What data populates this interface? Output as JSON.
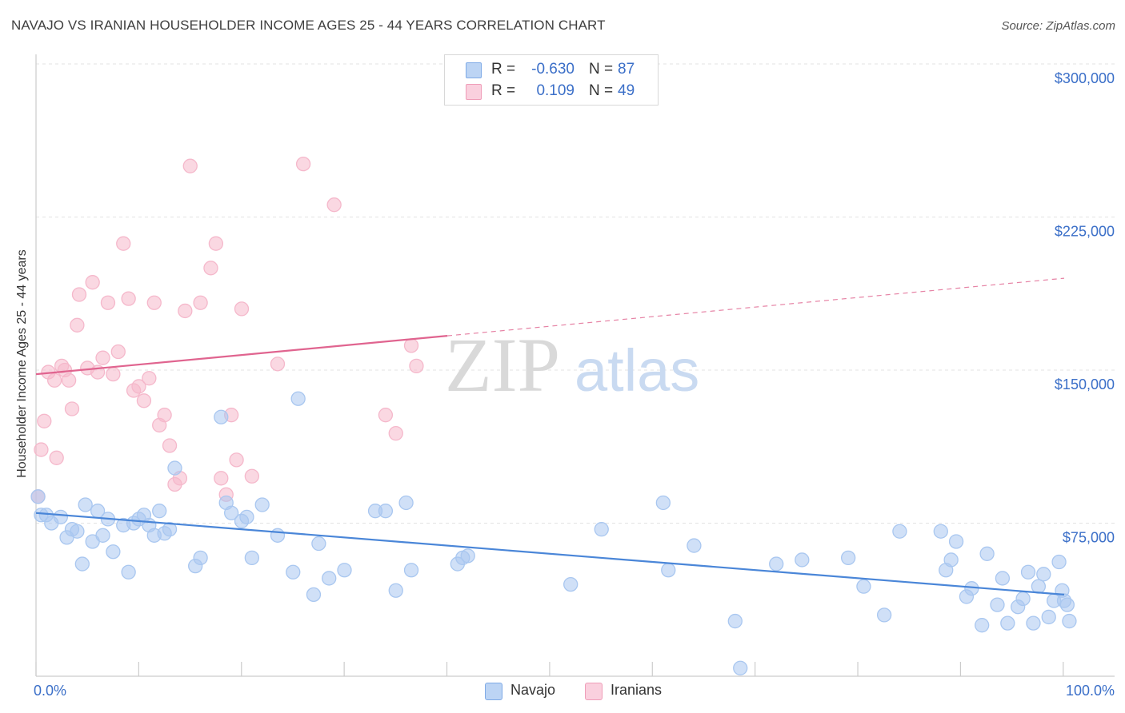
{
  "header": {
    "title": "NAVAJO VS IRANIAN HOUSEHOLDER INCOME AGES 25 - 44 YEARS CORRELATION CHART",
    "source": "Source: ZipAtlas.com"
  },
  "watermark": {
    "zip": "ZIP",
    "atlas": "atlas"
  },
  "legend": {
    "rows": [
      {
        "swatch_color": "#a9c7f0",
        "r_label": "R =",
        "r_value": "-0.630",
        "n_label": "N =",
        "n_value": "87"
      },
      {
        "swatch_color": "#f5b8cb",
        "r_label": "R =",
        "r_value": "0.109",
        "n_label": "N =",
        "n_value": "49"
      }
    ]
  },
  "bottom_legend": {
    "items": [
      {
        "label": "Navajo",
        "color": "#a9c7f0"
      },
      {
        "label": "Iranians",
        "color": "#f5b8cb"
      }
    ]
  },
  "chart_data": {
    "type": "scatter",
    "ylabel": "Householder Income Ages 25 - 44 years",
    "xlim": [
      0,
      100
    ],
    "ylim": [
      0,
      300000
    ],
    "x_tick_labels": {
      "min": "0.0%",
      "max": "100.0%"
    },
    "y_ticks": [
      {
        "value": 75000,
        "label": "$75,000"
      },
      {
        "value": 150000,
        "label": "$150,000"
      },
      {
        "value": 225000,
        "label": "$225,000"
      },
      {
        "value": 300000,
        "label": "$300,000"
      }
    ],
    "grid": true,
    "series": [
      {
        "name": "Navajo",
        "color": "#4a86d8",
        "fill": "#a9c7f0",
        "trend": {
          "x0": 0,
          "y0": 80000,
          "x1": 100,
          "y1": 40000,
          "solid_until": 100
        },
        "points": [
          [
            0.2,
            88000
          ],
          [
            0.5,
            79000
          ],
          [
            1.0,
            79000
          ],
          [
            1.5,
            75000
          ],
          [
            2.4,
            78000
          ],
          [
            3.0,
            68000
          ],
          [
            3.5,
            72000
          ],
          [
            4.0,
            71000
          ],
          [
            4.5,
            55000
          ],
          [
            4.8,
            84000
          ],
          [
            5.5,
            66000
          ],
          [
            6.0,
            81000
          ],
          [
            6.5,
            69000
          ],
          [
            7.0,
            77000
          ],
          [
            7.5,
            61000
          ],
          [
            8.5,
            74000
          ],
          [
            9.0,
            51000
          ],
          [
            9.5,
            75000
          ],
          [
            10.0,
            77000
          ],
          [
            10.5,
            79000
          ],
          [
            11.0,
            74000
          ],
          [
            11.5,
            69000
          ],
          [
            12.0,
            81000
          ],
          [
            12.5,
            70000
          ],
          [
            13.0,
            72000
          ],
          [
            13.5,
            102000
          ],
          [
            15.5,
            54000
          ],
          [
            16.0,
            58000
          ],
          [
            18.0,
            127000
          ],
          [
            18.5,
            85000
          ],
          [
            19.0,
            80000
          ],
          [
            20.0,
            76000
          ],
          [
            20.5,
            78000
          ],
          [
            21.0,
            58000
          ],
          [
            22.0,
            84000
          ],
          [
            23.5,
            69000
          ],
          [
            25.0,
            51000
          ],
          [
            25.5,
            136000
          ],
          [
            27.0,
            40000
          ],
          [
            27.5,
            65000
          ],
          [
            28.5,
            48000
          ],
          [
            30.0,
            52000
          ],
          [
            33.0,
            81000
          ],
          [
            34.0,
            81000
          ],
          [
            35.0,
            42000
          ],
          [
            36.0,
            85000
          ],
          [
            36.5,
            52000
          ],
          [
            41.0,
            55000
          ],
          [
            41.5,
            58000
          ],
          [
            42.0,
            59000
          ],
          [
            52.0,
            45000
          ],
          [
            55.0,
            72000
          ],
          [
            61.0,
            85000
          ],
          [
            61.5,
            52000
          ],
          [
            64.0,
            64000
          ],
          [
            68.0,
            27000
          ],
          [
            68.5,
            4000
          ],
          [
            72.0,
            55000
          ],
          [
            74.5,
            57000
          ],
          [
            79.0,
            58000
          ],
          [
            80.5,
            44000
          ],
          [
            82.5,
            30000
          ],
          [
            84.0,
            71000
          ],
          [
            88.0,
            71000
          ],
          [
            88.5,
            52000
          ],
          [
            89.0,
            57000
          ],
          [
            89.5,
            66000
          ],
          [
            90.5,
            39000
          ],
          [
            91.0,
            43000
          ],
          [
            92.0,
            25000
          ],
          [
            92.5,
            60000
          ],
          [
            93.5,
            35000
          ],
          [
            94.0,
            48000
          ],
          [
            94.5,
            26000
          ],
          [
            95.5,
            34000
          ],
          [
            96.0,
            38000
          ],
          [
            96.5,
            51000
          ],
          [
            97.0,
            26000
          ],
          [
            97.5,
            44000
          ],
          [
            98.0,
            50000
          ],
          [
            98.5,
            29000
          ],
          [
            99.0,
            37000
          ],
          [
            99.5,
            56000
          ],
          [
            99.8,
            42000
          ],
          [
            100.0,
            37000
          ],
          [
            100.3,
            35000
          ],
          [
            100.5,
            27000
          ]
        ]
      },
      {
        "name": "Iranians",
        "color": "#e0648f",
        "fill": "#f5b8cb",
        "trend": {
          "x0": 0,
          "y0": 148000,
          "x1": 100,
          "y1": 195000,
          "solid_until": 40
        },
        "points": [
          [
            0.2,
            88000
          ],
          [
            0.5,
            111000
          ],
          [
            0.8,
            125000
          ],
          [
            1.2,
            149000
          ],
          [
            1.8,
            145000
          ],
          [
            2.0,
            107000
          ],
          [
            2.5,
            152000
          ],
          [
            2.8,
            150000
          ],
          [
            3.2,
            145000
          ],
          [
            3.5,
            131000
          ],
          [
            4.0,
            172000
          ],
          [
            4.2,
            187000
          ],
          [
            5.0,
            151000
          ],
          [
            5.5,
            193000
          ],
          [
            6.0,
            149000
          ],
          [
            6.5,
            156000
          ],
          [
            7.0,
            183000
          ],
          [
            7.5,
            148000
          ],
          [
            8.0,
            159000
          ],
          [
            8.5,
            212000
          ],
          [
            9.0,
            185000
          ],
          [
            9.5,
            140000
          ],
          [
            10.0,
            142000
          ],
          [
            10.5,
            135000
          ],
          [
            11.0,
            146000
          ],
          [
            11.5,
            183000
          ],
          [
            12.0,
            123000
          ],
          [
            12.5,
            128000
          ],
          [
            13.0,
            113000
          ],
          [
            13.5,
            94000
          ],
          [
            14.0,
            97000
          ],
          [
            14.5,
            179000
          ],
          [
            15.0,
            250000
          ],
          [
            16.0,
            183000
          ],
          [
            17.0,
            200000
          ],
          [
            17.5,
            212000
          ],
          [
            18.0,
            97000
          ],
          [
            18.5,
            89000
          ],
          [
            19.0,
            128000
          ],
          [
            19.5,
            106000
          ],
          [
            20.0,
            180000
          ],
          [
            21.0,
            98000
          ],
          [
            23.5,
            153000
          ],
          [
            26.0,
            251000
          ],
          [
            29.0,
            231000
          ],
          [
            34.0,
            128000
          ],
          [
            35.0,
            119000
          ],
          [
            36.5,
            162000
          ],
          [
            37.0,
            152000
          ]
        ]
      }
    ]
  }
}
